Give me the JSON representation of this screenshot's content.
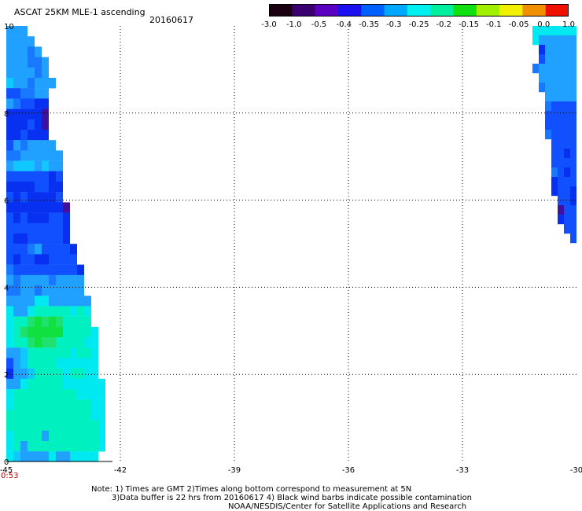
{
  "header": {
    "title": "ASCAT 25KM MLE-1 ascending",
    "date": "20160617"
  },
  "colorbar": {
    "labels": [
      "-3.0",
      "-1.0",
      "-0.5",
      "-0.4",
      "-0.35",
      "-0.3",
      "-0.25",
      "-0.2",
      "-0.15",
      "-0.1",
      "-0.05",
      "0.0",
      "1.0"
    ],
    "colors": [
      "#1a0010",
      "#3a0070",
      "#5a00c0",
      "#1a10f0",
      "#0060ff",
      "#00a8ff",
      "#00f0f0",
      "#00f0a0",
      "#10e010",
      "#a0f000",
      "#f0f000",
      "#f09000",
      "#f01000"
    ]
  },
  "axes": {
    "x_ticks": [
      "-45",
      "-42",
      "-39",
      "-36",
      "-33",
      "-30"
    ],
    "y_ticks": [
      "10",
      "8",
      "6",
      "4",
      "2",
      "0"
    ],
    "x_range": [
      -45,
      -30
    ],
    "y_range": [
      0,
      10
    ],
    "time_label": "0:53"
  },
  "notes": {
    "line1": "Note: 1) Times are GMT 2)Times along bottom correspond to measurement at 5N",
    "line2": "3)Data buffer is 22 hrs from 20160617 4) Black wind barbs indicate possible contamination",
    "line3": "NOAA/NESDIS/Center for Satellite Applications and Research"
  }
}
